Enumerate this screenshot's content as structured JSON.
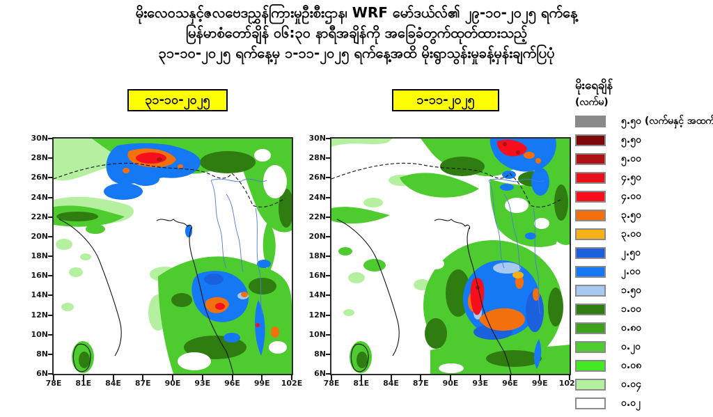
{
  "title": {
    "line1": "မိုးလေဝသနှင့်ဇလဗေဒညွှန်ကြားမှုဦးစီးဌာန၊ WRF မော်ဒယ်လ်၏ ၂၉-၁၀-၂၀၂၅ ရက်နေ့",
    "line2": "မြန်မာစံတော်ချိန် ၀၆:၃၀ နာရီအချိန်ကို အခြေခံတွက်ထုတ်ထားသည့်",
    "line3": "၃၁-၁၀-၂၀၂၅ ရက်နေ့မှ ၁-၁၁-၂၀၂၅ ရက်နေ့အထိ မိုးရွာသွန်းမှုခန့်မှန်းချက်ပြပုံ"
  },
  "panels": [
    {
      "date_label": "၃၁-၁၀-၂၀၂၅"
    },
    {
      "date_label": "၁-၁၁-၂၀၂၅"
    }
  ],
  "maps": {
    "lat_ticks": [
      "30N",
      "28N",
      "26N",
      "24N",
      "22N",
      "20N",
      "18N",
      "16N",
      "14N",
      "12N",
      "10N",
      "8N",
      "6N"
    ],
    "lon_ticks": [
      "78E",
      "81E",
      "84E",
      "87E",
      "90E",
      "93E",
      "96E",
      "99E",
      "102E"
    ]
  },
  "legend": {
    "title": "မိုးရေချိန်",
    "unit": "(လက်မ)",
    "entries": [
      {
        "label": "၅.၅၀ (လက်မနှင့် အထက်)",
        "color": "#8a8a8a"
      },
      {
        "label": "၅.၅၀",
        "color": "#7d0a0a"
      },
      {
        "label": "၅.၀၀",
        "color": "#b01116"
      },
      {
        "label": "၄.၅၀",
        "color": "#e8121c"
      },
      {
        "label": "၄.၀၀",
        "color": "#f6101e"
      },
      {
        "label": "၃.၅၀",
        "color": "#f2700e"
      },
      {
        "label": "၃.၀၀",
        "color": "#f7b118"
      },
      {
        "label": "၂.၅၀",
        "color": "#1b61de"
      },
      {
        "label": "၂.၀၀",
        "color": "#1578f5"
      },
      {
        "label": "၁.၅၀",
        "color": "#a7c9f2"
      },
      {
        "label": "၁.၀၀",
        "color": "#2f7d10"
      },
      {
        "label": "၀.၈၀",
        "color": "#3fa01e"
      },
      {
        "label": "၀.၂၀",
        "color": "#4ecc2f"
      },
      {
        "label": "၀.၀၈",
        "color": "#42eb1f"
      },
      {
        "label": "၀.၀၄",
        "color": "#b5f0a0"
      },
      {
        "label": "၀.၀၂",
        "color": "#ffffff"
      }
    ]
  },
  "colors": {
    "highlight_yellow": "#ffff00",
    "background": "#ffffff",
    "frame": "#2b2b2b"
  }
}
